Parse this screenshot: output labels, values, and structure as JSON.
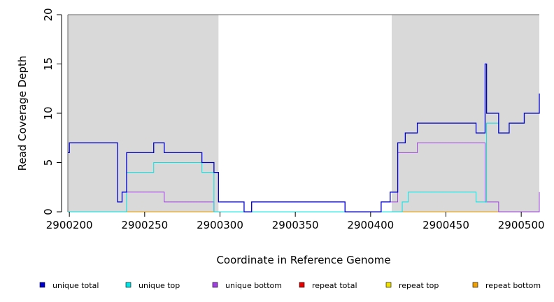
{
  "chart_data": {
    "type": "line",
    "title": "",
    "xlabel": "Coordinate in Reference Genome",
    "ylabel": "Read Coverage Depth",
    "xlim": [
      2900199,
      2900512
    ],
    "ylim": [
      0,
      20
    ],
    "x_ticks": [
      2900200,
      2900250,
      2900300,
      2900350,
      2900400,
      2900450,
      2900500
    ],
    "y_ticks": [
      0,
      5,
      10,
      15,
      20
    ],
    "shaded_regions": [
      {
        "start": 2900199,
        "end": 2900299,
        "color": "#d9d9d9"
      },
      {
        "start": 2900414,
        "end": 2900512,
        "color": "#d9d9d9"
      }
    ],
    "legend_position": "bottom",
    "series": [
      {
        "name": "unique total",
        "color": "#0000cc",
        "points": [
          [
            2900199,
            6
          ],
          [
            2900200,
            7
          ],
          [
            2900232,
            1
          ],
          [
            2900235,
            2
          ],
          [
            2900238,
            6
          ],
          [
            2900256,
            7
          ],
          [
            2900263,
            6
          ],
          [
            2900288,
            5
          ],
          [
            2900296,
            4
          ],
          [
            2900299,
            1
          ],
          [
            2900316,
            0
          ],
          [
            2900321,
            1
          ],
          [
            2900383,
            0
          ],
          [
            2900407,
            1
          ],
          [
            2900413,
            2
          ],
          [
            2900418,
            7
          ],
          [
            2900423,
            8
          ],
          [
            2900431,
            9
          ],
          [
            2900470,
            8
          ],
          [
            2900476,
            15
          ],
          [
            2900477,
            10
          ],
          [
            2900485,
            8
          ],
          [
            2900492,
            9
          ],
          [
            2900502,
            10
          ],
          [
            2900512,
            12
          ]
        ]
      },
      {
        "name": "unique top",
        "color": "#00e5e5",
        "points": [
          [
            2900199,
            0
          ],
          [
            2900238,
            4
          ],
          [
            2900256,
            5
          ],
          [
            2900288,
            4
          ],
          [
            2900296,
            0
          ],
          [
            2900421,
            1
          ],
          [
            2900425,
            2
          ],
          [
            2900470,
            1
          ],
          [
            2900477,
            9
          ],
          [
            2900485,
            8
          ],
          [
            2900492,
            9
          ],
          [
            2900502,
            10
          ],
          [
            2900512,
            12
          ]
        ]
      },
      {
        "name": "unique bottom",
        "color": "#a040e0",
        "points": [
          [
            2900199,
            0
          ],
          [
            2900238,
            2
          ],
          [
            2900256,
            2
          ],
          [
            2900263,
            1
          ],
          [
            2900296,
            0
          ],
          [
            2900321,
            1
          ],
          [
            2900383,
            0
          ],
          [
            2900407,
            1
          ],
          [
            2900418,
            6
          ],
          [
            2900431,
            7
          ],
          [
            2900476,
            1
          ],
          [
            2900485,
            0
          ],
          [
            2900512,
            2
          ]
        ]
      },
      {
        "name": "repeat total",
        "color": "#e60000",
        "points": [
          [
            2900199,
            0
          ],
          [
            2900512,
            0
          ]
        ]
      },
      {
        "name": "repeat top",
        "color": "#f0e000",
        "points": [
          [
            2900199,
            0
          ],
          [
            2900512,
            0
          ]
        ]
      },
      {
        "name": "repeat bottom",
        "color": "#f0a000",
        "points": [
          [
            2900199,
            0
          ],
          [
            2900512,
            0
          ]
        ]
      }
    ]
  }
}
